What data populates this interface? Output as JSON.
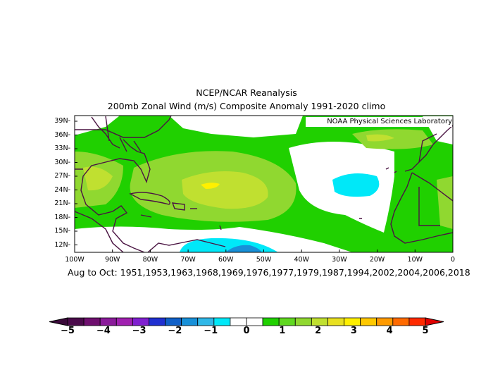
{
  "title_line1": "NCEP/NCAR Reanalysis",
  "title_line2": "200mb Zonal Wind (m/s) Composite Anomaly 1991-2020 climo",
  "credit": "NOAA Physical Sciences Laboratory",
  "subtitle": "Aug to Oct: 1951,1953,1963,1968,1969,1976,1977,1979,1987,1994,2002,2004,2006,2018",
  "lat_labels": [
    "39N",
    "36N",
    "33N",
    "30N",
    "27N",
    "24N",
    "21N",
    "18N",
    "15N",
    "12N"
  ],
  "lon_labels": [
    "100W",
    "90W",
    "80W",
    "70W",
    "60W",
    "50W",
    "40W",
    "30W",
    "20W",
    "10W",
    "0"
  ],
  "colorbar": {
    "labels": [
      "-5",
      "-4",
      "-3",
      "-2",
      "-1",
      "0",
      "1",
      "2",
      "3",
      "4",
      "5"
    ],
    "colors": [
      "#4a0a4a",
      "#6f0f6f",
      "#8a1a9a",
      "#a020b0",
      "#8020d0",
      "#2030d0",
      "#1060c8",
      "#1890d8",
      "#30b8e8",
      "#00e8f8",
      "#ffffff",
      "#ffffff",
      "#20d000",
      "#60d820",
      "#90d830",
      "#c0e030",
      "#e8e020",
      "#fff000",
      "#ffc800",
      "#ff9a00",
      "#ff6a00",
      "#ff2a00"
    ]
  }
}
